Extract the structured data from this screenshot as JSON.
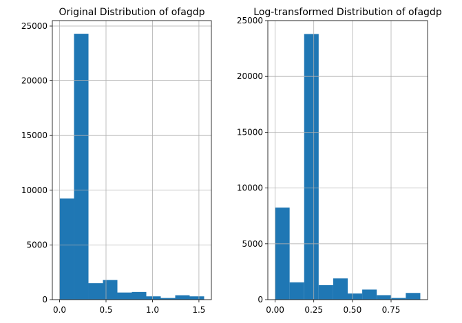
{
  "chart_data": [
    {
      "type": "bar",
      "title": "Original Distribution of ofagdp",
      "xlabel": "",
      "ylabel": "",
      "bin_edges": [
        0.0,
        0.1556,
        0.3112,
        0.4668,
        0.6224,
        0.778,
        0.9336,
        1.0892,
        1.2448,
        1.4004,
        1.556
      ],
      "values": [
        9250,
        24300,
        1500,
        1800,
        650,
        700,
        300,
        150,
        400,
        300
      ],
      "xlim": [
        -0.078,
        1.634
      ],
      "ylim": [
        0,
        25500
      ],
      "xticks": [
        0.0,
        0.5,
        1.0,
        1.5
      ],
      "xtick_labels": [
        "0.0",
        "0.5",
        "1.0",
        "1.5"
      ],
      "yticks": [
        0,
        5000,
        10000,
        15000,
        20000,
        25000
      ],
      "ytick_labels": [
        "0",
        "5000",
        "10000",
        "15000",
        "20000",
        "25000"
      ],
      "grid": true,
      "color": "#1f77b4"
    },
    {
      "type": "bar",
      "title": "Log-transformed Distribution of ofagdp",
      "xlabel": "",
      "ylabel": "",
      "bin_edges": [
        0.0,
        0.0939,
        0.1878,
        0.2817,
        0.3756,
        0.4695,
        0.5634,
        0.6573,
        0.7512,
        0.8451,
        0.939
      ],
      "values": [
        8250,
        1550,
        23800,
        1300,
        1900,
        550,
        900,
        400,
        150,
        600
      ],
      "xlim": [
        -0.047,
        0.986
      ],
      "ylim": [
        0,
        25000
      ],
      "xticks": [
        0.0,
        0.25,
        0.5,
        0.75
      ],
      "xtick_labels": [
        "0.00",
        "0.25",
        "0.50",
        "0.75"
      ],
      "yticks": [
        0,
        5000,
        10000,
        15000,
        20000,
        25000
      ],
      "ytick_labels": [
        "0",
        "5000",
        "10000",
        "15000",
        "20000",
        "25000"
      ],
      "grid": true,
      "color": "#1f77b4"
    }
  ]
}
